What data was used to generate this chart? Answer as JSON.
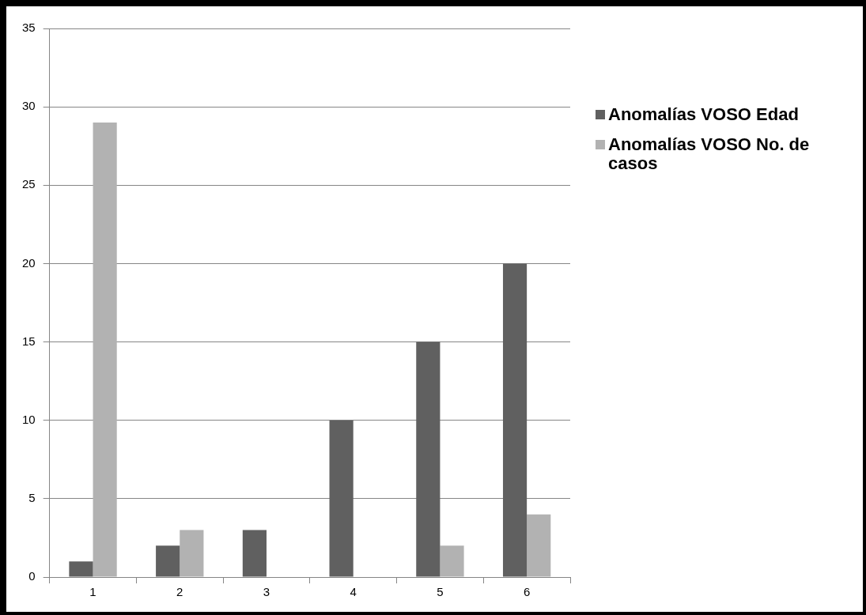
{
  "chart_data": {
    "type": "bar",
    "categories": [
      "1",
      "2",
      "3",
      "4",
      "5",
      "6"
    ],
    "series": [
      {
        "name": "Anomalías VOSO Edad",
        "color": "#606060",
        "values": [
          1,
          2,
          3,
          10,
          15,
          20
        ]
      },
      {
        "name": "Anomalías VOSO No. de casos",
        "color": "#b2b2b2",
        "values": [
          29,
          3,
          0,
          0,
          2,
          4
        ]
      }
    ],
    "ylim": [
      0,
      35
    ],
    "yticks": [
      0,
      5,
      10,
      15,
      20,
      25,
      30,
      35
    ],
    "grid": "y",
    "legend": "right"
  }
}
